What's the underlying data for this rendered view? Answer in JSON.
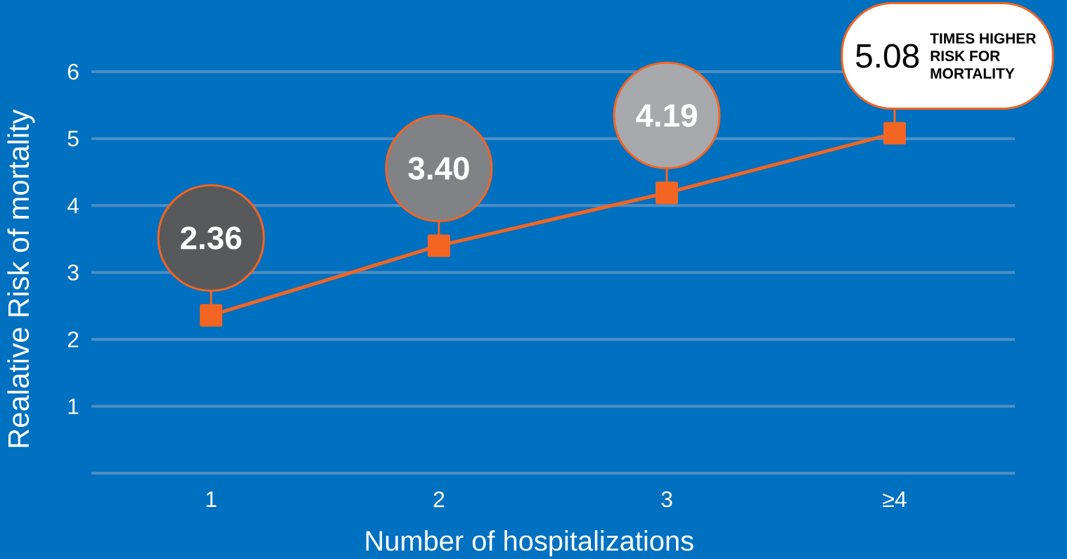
{
  "chart_data": {
    "type": "line",
    "xlabel": "Number of hospitalizations",
    "ylabel": "Realative Risk of mortality",
    "categories": [
      "1",
      "2",
      "3",
      "≥4"
    ],
    "series": [
      {
        "color": "#f26522",
        "values": [
          2.36,
          3.4,
          4.19,
          5.08
        ],
        "value_labels": [
          "2.36",
          "3.40",
          "4.19",
          "5.08"
        ]
      }
    ],
    "ylim": [
      0,
      6
    ],
    "yticks": [
      {
        "value": 0,
        "label": null
      },
      1,
      2,
      3,
      4,
      5,
      6
    ],
    "grid": "y",
    "marker": "square",
    "line_style": "solid",
    "annotations": [
      "TIMES HIGHER RISK FOR MORTALITY"
    ]
  }
}
